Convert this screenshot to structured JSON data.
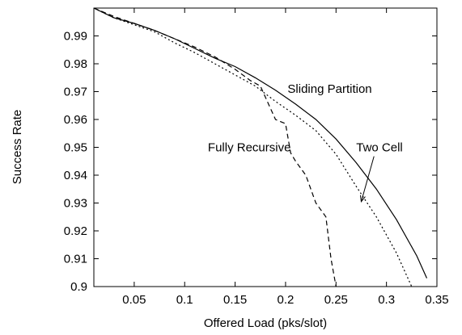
{
  "chart_data": {
    "type": "line",
    "title": "",
    "xlabel": "Offered Load (pks/slot)",
    "ylabel": "Success Rate",
    "xlim": [
      0.01,
      0.35
    ],
    "ylim": [
      0.9,
      1.0
    ],
    "xticks": [
      0.05,
      0.1,
      0.15,
      0.2,
      0.25,
      0.3,
      0.35
    ],
    "xtick_labels": [
      "0.05",
      "0.1",
      "0.15",
      "0.2",
      "0.25",
      "0.3",
      "0.35"
    ],
    "yticks": [
      0.9,
      0.91,
      0.92,
      0.93,
      0.94,
      0.95,
      0.96,
      0.97,
      0.98,
      0.99
    ],
    "ytick_labels": [
      "0.9",
      "0.91",
      "0.92",
      "0.93",
      "0.94",
      "0.95",
      "0.96",
      "0.97",
      "0.98",
      "0.99"
    ],
    "grid": false,
    "legend": "none",
    "series": [
      {
        "name": "Sliding Partition",
        "style": "solid",
        "color": "#000000",
        "x": [
          0.01,
          0.03,
          0.05,
          0.07,
          0.09,
          0.11,
          0.13,
          0.15,
          0.17,
          0.19,
          0.21,
          0.23,
          0.25,
          0.27,
          0.29,
          0.31,
          0.33,
          0.34
        ],
        "y": [
          1.0,
          0.9965,
          0.9945,
          0.992,
          0.989,
          0.9855,
          0.982,
          0.979,
          0.975,
          0.9705,
          0.9655,
          0.96,
          0.953,
          0.9445,
          0.935,
          0.924,
          0.911,
          0.903
        ]
      },
      {
        "name": "Two Cell",
        "style": "dotted",
        "color": "#000000",
        "x": [
          0.01,
          0.03,
          0.05,
          0.07,
          0.09,
          0.11,
          0.13,
          0.15,
          0.17,
          0.19,
          0.21,
          0.23,
          0.25,
          0.27,
          0.29,
          0.31,
          0.325
        ],
        "y": [
          1.0,
          0.9965,
          0.994,
          0.9915,
          0.9875,
          0.984,
          0.98,
          0.976,
          0.972,
          0.9665,
          0.9615,
          0.956,
          0.9475,
          0.936,
          0.925,
          0.912,
          0.9
        ]
      },
      {
        "name": "Fully Recursive",
        "style": "dashed",
        "color": "#000000",
        "x": [
          0.01,
          0.03,
          0.05,
          0.07,
          0.09,
          0.11,
          0.13,
          0.15,
          0.165,
          0.175,
          0.18,
          0.19,
          0.2,
          0.205,
          0.21,
          0.22,
          0.23,
          0.24,
          0.245,
          0.25
        ],
        "y": [
          1.0,
          0.997,
          0.9945,
          0.992,
          0.989,
          0.986,
          0.9825,
          0.978,
          0.974,
          0.972,
          0.968,
          0.96,
          0.9585,
          0.948,
          0.945,
          0.94,
          0.93,
          0.925,
          0.91,
          0.9
        ]
      }
    ],
    "annotations": [
      {
        "text": "Sliding Partition",
        "x": 0.202,
        "y": 0.9695
      },
      {
        "text": "Fully Recursive",
        "x": 0.123,
        "y": 0.9485
      },
      {
        "text": "Two Cell",
        "x": 0.27,
        "y": 0.9485,
        "arrow_to": [
          0.275,
          0.9305
        ]
      }
    ]
  }
}
